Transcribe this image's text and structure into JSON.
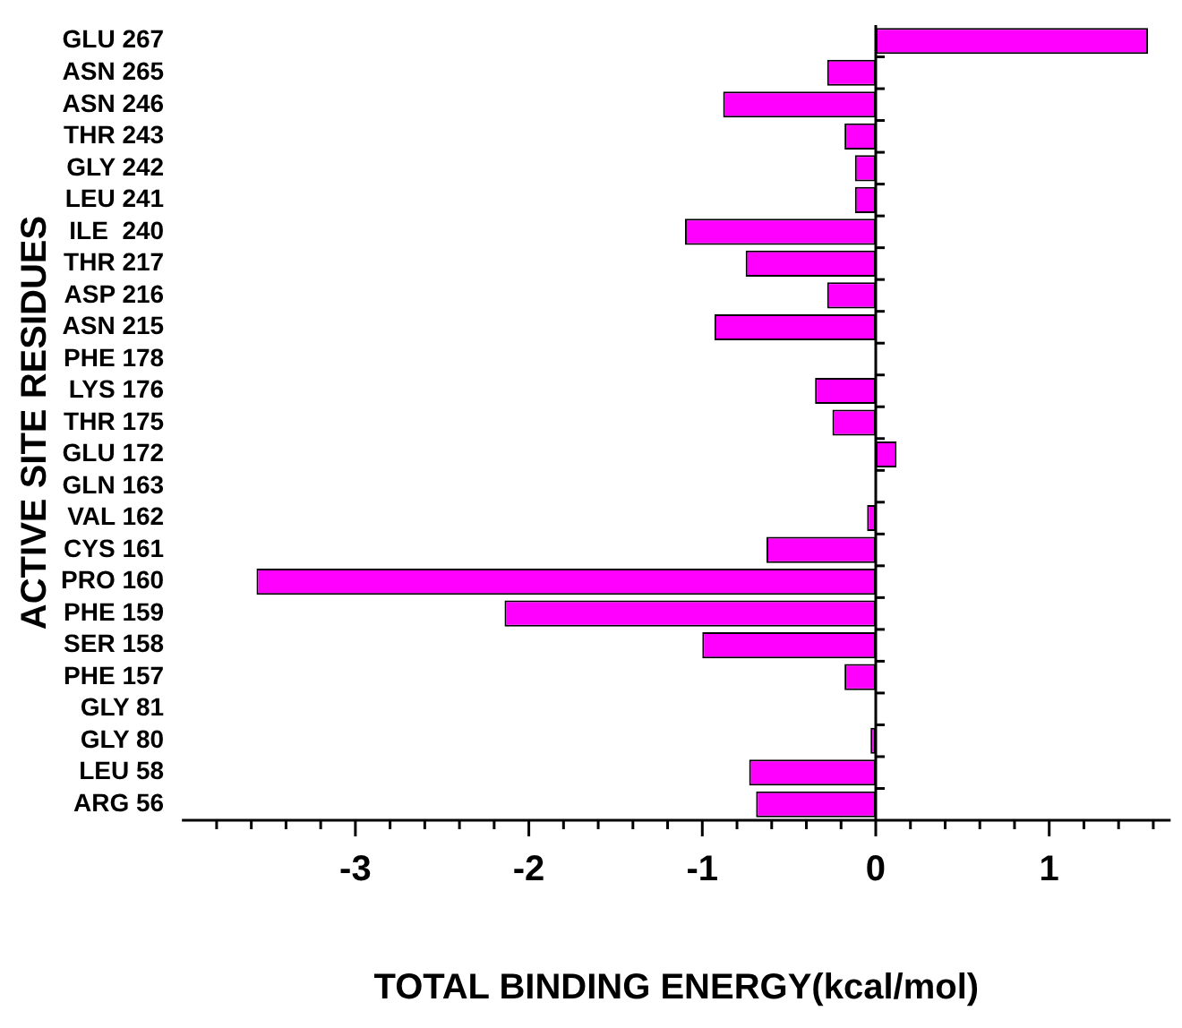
{
  "chart_data": {
    "type": "bar",
    "orientation": "horizontal",
    "xlabel": "TOTAL BINDING ENERGY(kcal/mol)",
    "ylabel": "ACTIVE SITE RESIDUES",
    "categories": [
      "GLU 267",
      "ASN 265",
      "ASN 246",
      "THR 243",
      "GLY 242",
      "LEU 241",
      "ILE  240",
      "THR 217",
      "ASP 216",
      "ASN 215",
      "PHE 178",
      "LYS 176",
      "THR 175",
      "GLU 172",
      "GLN 163",
      "VAL 162",
      "CYS 161",
      "PRO 160",
      "PHE 159",
      "SER 158",
      "PHE 157",
      "GLY 81",
      "GLY 80",
      "LEU 58",
      "ARG 56"
    ],
    "values": [
      1.57,
      -0.28,
      -0.88,
      -0.18,
      -0.12,
      -0.12,
      -1.1,
      -0.75,
      -0.28,
      -0.93,
      0,
      -0.35,
      -0.25,
      0.12,
      0,
      -0.05,
      -0.63,
      -3.57,
      -2.14,
      -1.0,
      -0.18,
      0,
      -0.03,
      -0.73,
      -0.69
    ],
    "color": "#ff00ff",
    "xlim": [
      -4,
      1.7
    ],
    "xticks": [
      {
        "value": -3.8,
        "label": null
      },
      {
        "value": -3.6,
        "label": null
      },
      {
        "value": -3.4,
        "label": null
      },
      {
        "value": -3.2,
        "label": null
      },
      -3,
      {
        "value": -2.8,
        "label": null
      },
      {
        "value": -2.6,
        "label": null
      },
      {
        "value": -2.4,
        "label": null
      },
      {
        "value": -2.2,
        "label": null
      },
      -2,
      {
        "value": -1.8,
        "label": null
      },
      {
        "value": -1.6,
        "label": null
      },
      {
        "value": -1.4,
        "label": null
      },
      {
        "value": -1.2,
        "label": null
      },
      -1,
      {
        "value": -0.8,
        "label": null
      },
      {
        "value": -0.6,
        "label": null
      },
      {
        "value": -0.4,
        "label": null
      },
      {
        "value": -0.2,
        "label": null
      },
      0,
      {
        "value": 0.2,
        "label": null
      },
      {
        "value": 0.4,
        "label": null
      },
      {
        "value": 0.6,
        "label": null
      },
      {
        "value": 0.8,
        "label": null
      },
      1,
      {
        "value": 1.2,
        "label": null
      },
      {
        "value": 1.4,
        "label": null
      },
      {
        "value": 1.6,
        "label": null
      }
    ],
    "legend": false
  }
}
